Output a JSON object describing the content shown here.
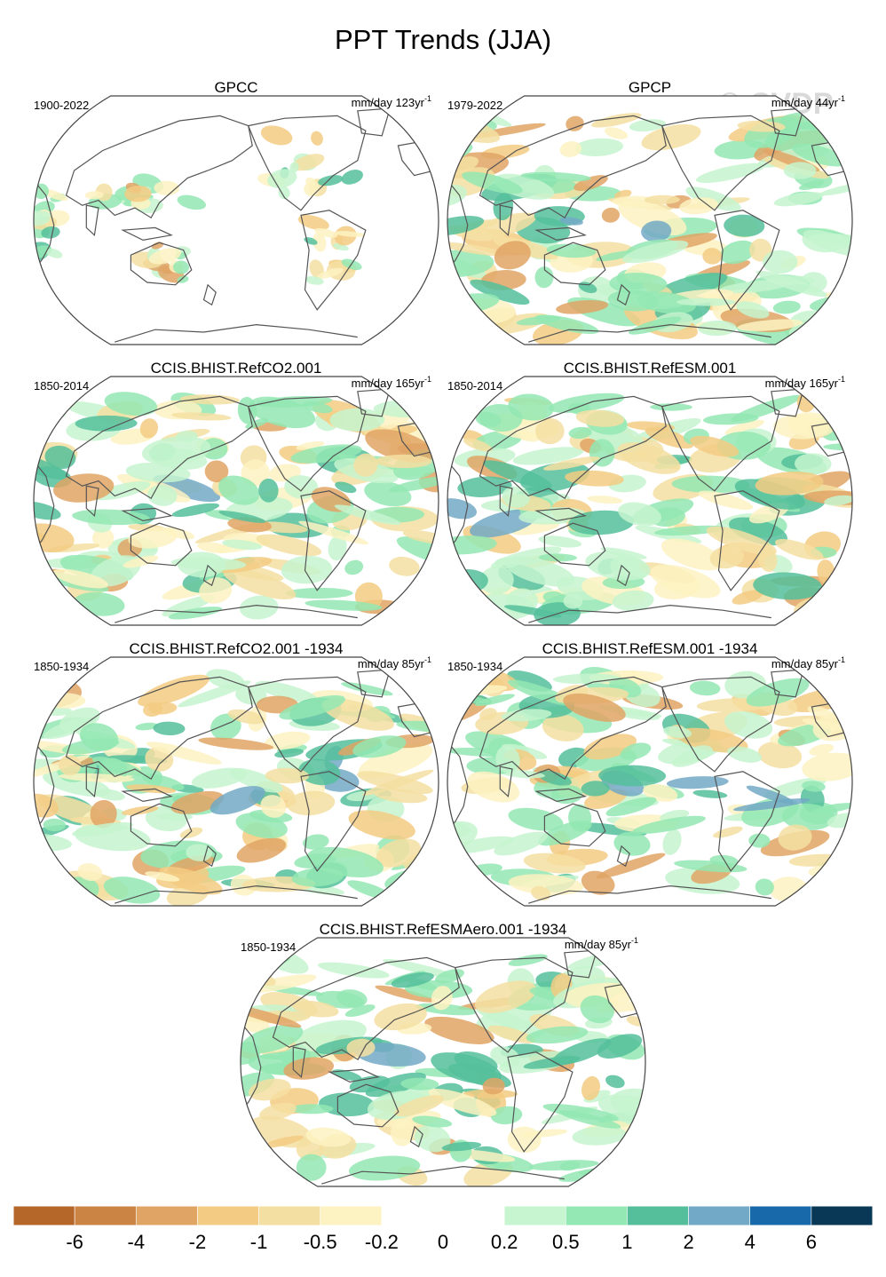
{
  "title": "PPT Trends (JJA)",
  "watermark": "© CVDP",
  "panels": [
    {
      "name": "GPCC",
      "period": "1900-2022",
      "units": "mm/day 123yr",
      "exp": "-1",
      "seed": 3,
      "coverage": "land"
    },
    {
      "name": "GPCP",
      "period": "1979-2022",
      "units": "mm/day 44yr",
      "exp": "-1",
      "seed": 11,
      "coverage": "global"
    },
    {
      "name": "CCIS.BHIST.RefCO2.001",
      "period": "1850-2014",
      "units": "mm/day 165yr",
      "exp": "-1",
      "seed": 21,
      "coverage": "global"
    },
    {
      "name": "CCIS.BHIST.RefESM.001",
      "period": "1850-2014",
      "units": "mm/day 165yr",
      "exp": "-1",
      "seed": 33,
      "coverage": "global"
    },
    {
      "name": "CCIS.BHIST.RefCO2.001 -1934",
      "period": "1850-1934",
      "units": "mm/day 85yr",
      "exp": "-1",
      "seed": 45,
      "coverage": "global"
    },
    {
      "name": "CCIS.BHIST.RefESM.001 -1934",
      "period": "1850-1934",
      "units": "mm/day 85yr",
      "exp": "-1",
      "seed": 57,
      "coverage": "global"
    },
    {
      "name": "CCIS.BHIST.RefESMAero.001 -1934",
      "period": "1850-1934",
      "units": "mm/day 85yr",
      "exp": "-1",
      "seed": 69,
      "coverage": "global"
    }
  ],
  "colorbar": {
    "colors": [
      "#b5672a",
      "#cc8445",
      "#e0a465",
      "#f3cb82",
      "#f4dfa2",
      "#fdf2c2",
      "#ffffff",
      "#ffffff",
      "#c6f5cf",
      "#93e8b3",
      "#55bf9b",
      "#72a9c6",
      "#1769a9",
      "#083855"
    ],
    "ticks": [
      "-6",
      "-4",
      "-2",
      "-1",
      "-0.5",
      "-0.2",
      "0",
      "0.2",
      "0.5",
      "1",
      "2",
      "4",
      "6"
    ]
  }
}
